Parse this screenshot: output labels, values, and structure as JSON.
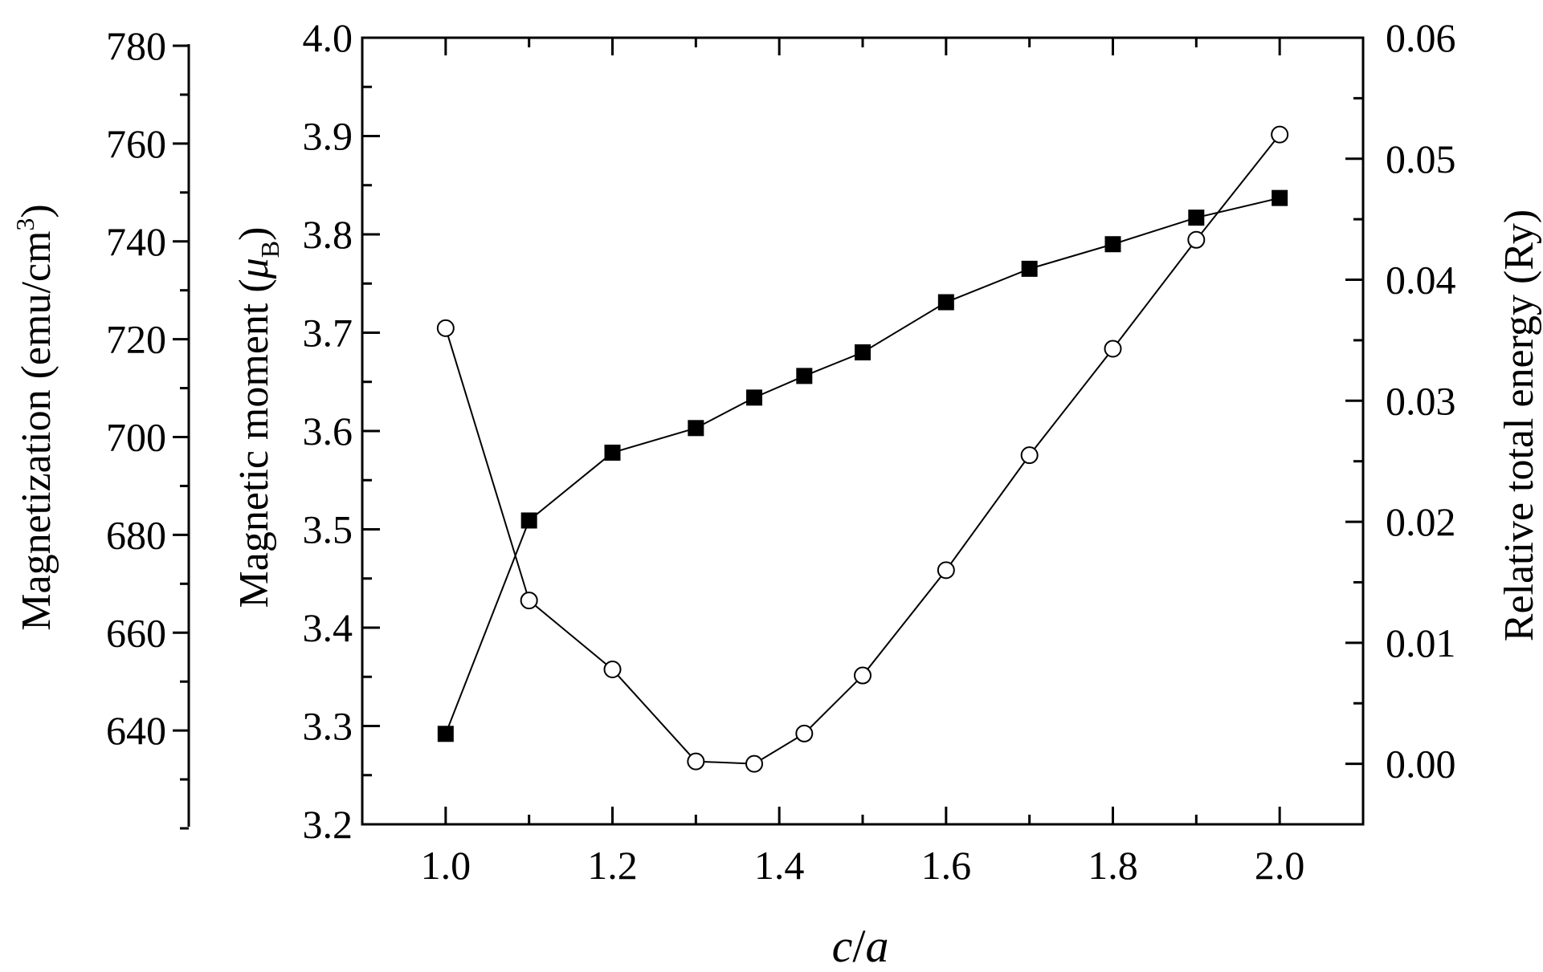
{
  "chart_data": {
    "type": "line",
    "x": [
      1.0,
      1.1,
      1.2,
      1.3,
      1.37,
      1.43,
      1.5,
      1.6,
      1.7,
      1.8,
      1.9,
      2.0
    ],
    "xlim": [
      0.9,
      2.1
    ],
    "xticks": [
      "1.0",
      "1.2",
      "1.4",
      "1.6",
      "1.8",
      "2.0"
    ],
    "xlabel_italic_1": "c",
    "xlabel_sep": "/",
    "xlabel_italic_2": "a",
    "ylabel_left_outer": "Magnetization (emu/cm",
    "ylabel_left_outer_sup": "3",
    "ylabel_left_outer_close": ")",
    "ylim_left_outer": [
      620,
      780
    ],
    "yticks_left_outer": [
      "640",
      "660",
      "680",
      "700",
      "720",
      "740",
      "760",
      "780"
    ],
    "ylabel_left_inner": "Magnetic moment (",
    "ylabel_left_inner_mu": "μ",
    "ylabel_left_inner_sub": "B",
    "ylabel_left_inner_close": ")",
    "ylim_left_inner": [
      3.2,
      4.0
    ],
    "yticks_left_inner": [
      "3.2",
      "3.3",
      "3.4",
      "3.5",
      "3.6",
      "3.7",
      "3.8",
      "3.9",
      "4.0"
    ],
    "ylabel_right": "Relative total energy (Ry)",
    "ylim_right": [
      -0.005,
      0.06
    ],
    "yticks_right": [
      "0.00",
      "0.01",
      "0.02",
      "0.03",
      "0.04",
      "0.05",
      "0.06"
    ],
    "series": [
      {
        "marker": "filled-square",
        "axis": "left_inner",
        "values": [
          3.292,
          3.509,
          3.578,
          3.603,
          3.634,
          3.656,
          3.68,
          3.731,
          3.765,
          3.79,
          3.817,
          3.837
        ]
      },
      {
        "marker": "open-circle",
        "axis": "right",
        "values": [
          0.036,
          0.0135,
          0.0078,
          0.0002,
          0.0,
          0.0025,
          0.0073,
          0.016,
          0.0255,
          0.0343,
          0.0433,
          0.052
        ]
      }
    ],
    "colors": {
      "line": "#000000",
      "fill": "#000000",
      "background": "#ffffff"
    }
  }
}
